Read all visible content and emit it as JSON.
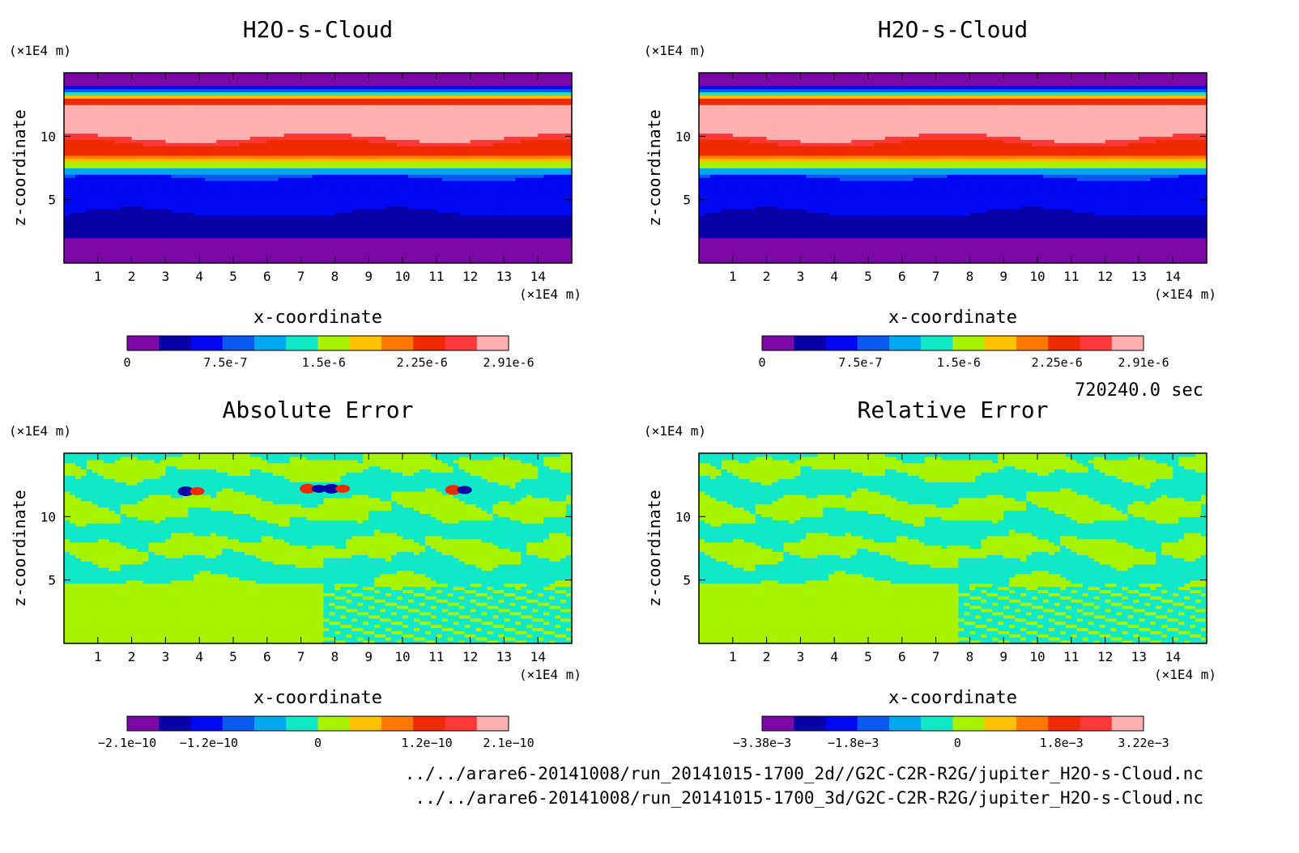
{
  "chart_data": [
    {
      "type": "heatmap",
      "title": "H2O-s-Cloud",
      "xlabel": "x-coordinate",
      "ylabel": "z-coordinate",
      "x_unit": "(×1E4 m)",
      "y_unit": "(×1E4 m)",
      "xlim": [
        0,
        15
      ],
      "ylim": [
        0,
        15
      ],
      "x_ticks": [
        1,
        2,
        3,
        4,
        5,
        6,
        7,
        8,
        9,
        10,
        11,
        12,
        13,
        14
      ],
      "y_ticks": [
        5,
        10
      ],
      "colorbar": {
        "min": 0,
        "max": 2.91e-06,
        "tick_labels": [
          "0",
          "7.5e-7",
          "1.5e-6",
          "2.25e-6",
          "2.91e-6"
        ],
        "tick_values": [
          0,
          7.5e-07,
          1.5e-06,
          2.25e-06,
          2.91e-06
        ]
      },
      "field": "cloud"
    },
    {
      "type": "heatmap",
      "title": "H2O-s-Cloud",
      "xlabel": "x-coordinate",
      "ylabel": "z-coordinate",
      "x_unit": "(×1E4 m)",
      "y_unit": "(×1E4 m)",
      "xlim": [
        0,
        15
      ],
      "ylim": [
        0,
        15
      ],
      "x_ticks": [
        1,
        2,
        3,
        4,
        5,
        6,
        7,
        8,
        9,
        10,
        11,
        12,
        13,
        14
      ],
      "y_ticks": [
        5,
        10
      ],
      "colorbar": {
        "min": 0,
        "max": 2.91e-06,
        "tick_labels": [
          "0",
          "7.5e-7",
          "1.5e-6",
          "2.25e-6",
          "2.91e-6"
        ],
        "tick_values": [
          0,
          7.5e-07,
          1.5e-06,
          2.25e-06,
          2.91e-06
        ]
      },
      "field": "cloud"
    },
    {
      "type": "heatmap",
      "title": "Absolute Error",
      "xlabel": "x-coordinate",
      "ylabel": "z-coordinate",
      "x_unit": "(×1E4 m)",
      "y_unit": "(×1E4 m)",
      "xlim": [
        0,
        15
      ],
      "ylim": [
        0,
        15
      ],
      "x_ticks": [
        1,
        2,
        3,
        4,
        5,
        6,
        7,
        8,
        9,
        10,
        11,
        12,
        13,
        14
      ],
      "y_ticks": [
        5,
        10
      ],
      "colorbar": {
        "min": -2.1e-10,
        "max": 2.1e-10,
        "tick_labels": [
          "−2.1e−10",
          "−1.2e−10",
          "0",
          "1.2e−10",
          "2.1e−10"
        ],
        "tick_values": [
          -2.1e-10,
          -1.2e-10,
          0,
          1.2e-10,
          2.1e-10
        ]
      },
      "field": "error",
      "blobs": true
    },
    {
      "type": "heatmap",
      "title": "Relative Error",
      "xlabel": "x-coordinate",
      "ylabel": "z-coordinate",
      "x_unit": "(×1E4 m)",
      "y_unit": "(×1E4 m)",
      "xlim": [
        0,
        15
      ],
      "ylim": [
        0,
        15
      ],
      "x_ticks": [
        1,
        2,
        3,
        4,
        5,
        6,
        7,
        8,
        9,
        10,
        11,
        12,
        13,
        14
      ],
      "y_ticks": [
        5,
        10
      ],
      "colorbar": {
        "min": -0.00338,
        "max": 0.00322,
        "tick_labels": [
          "−3.38e−3",
          "−1.8e−3",
          "0",
          "1.8e−3",
          "3.22e−3"
        ],
        "tick_values": [
          -0.00338,
          -0.0018,
          0,
          0.0018,
          0.00322
        ]
      },
      "field": "error",
      "blobs": false
    }
  ],
  "colormap": [
    "#7c06a6",
    "#0a00a8",
    "#0008f2",
    "#0a5aee",
    "#00a8f0",
    "#10e8c8",
    "#a8f200",
    "#ffc000",
    "#ff7800",
    "#f02a00",
    "#ff3838",
    "#ffb0b0"
  ],
  "time_label": "720240.0 sec",
  "file_paths": [
    "../../arare6-20141008/run_20141015-1700_2d//G2C-C2R-R2G/jupiter_H2O-s-Cloud.nc",
    "../../arare6-20141008/run_20141015-1700_3d/G2C-C2R-R2G/jupiter_H2O-s-Cloud.nc"
  ]
}
